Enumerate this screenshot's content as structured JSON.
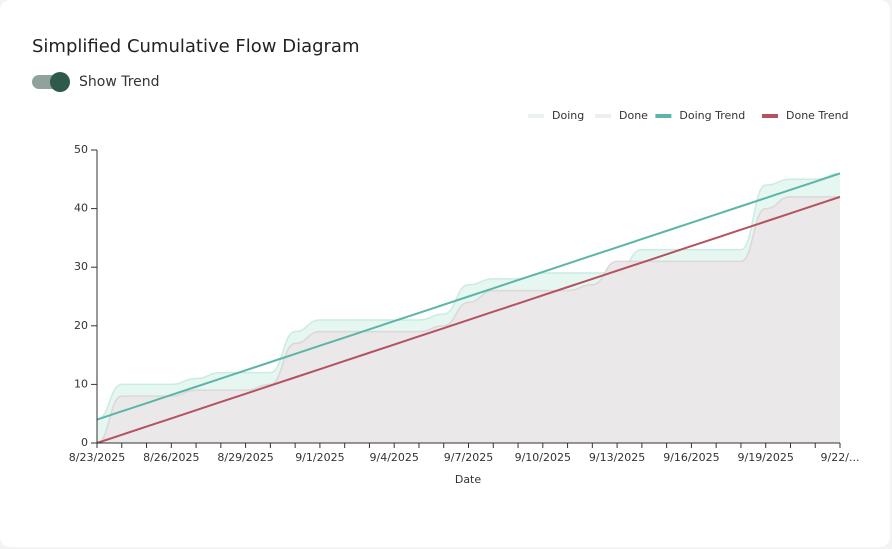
{
  "toggle_label": "Show Trend",
  "chart_data": {
    "type": "area",
    "title": "Simplified Cumulative Flow Diagram",
    "xlabel": "Date",
    "categories": [
      "8/23/2025",
      null,
      null,
      "8/26/2025",
      null,
      null,
      "8/29/2025",
      null,
      null,
      "9/1/2025",
      null,
      null,
      "9/4/2025",
      null,
      null,
      "9/7/2025",
      null,
      null,
      "9/10/2025",
      null,
      null,
      "9/13/2025",
      null,
      null,
      "9/16/2025",
      null,
      null,
      "9/19/2025",
      null,
      null,
      "9/22/..."
    ],
    "ylim": [
      0,
      50
    ],
    "yticks": [
      0,
      10,
      20,
      30,
      40,
      50
    ],
    "series": [
      {
        "name": "Doing",
        "kind": "area",
        "color": "#e3f6f1",
        "values": [
          4,
          10,
          10,
          10,
          11,
          12,
          12,
          12,
          19,
          21,
          21,
          21,
          21,
          21,
          22,
          27,
          28,
          28,
          29,
          29,
          29,
          29,
          33,
          33,
          33,
          33,
          33,
          44,
          45,
          45,
          46
        ]
      },
      {
        "name": "Done",
        "kind": "area",
        "color": "#eae6e7",
        "values": [
          0,
          8,
          8,
          8,
          9,
          9,
          9,
          10,
          17,
          19,
          19,
          19,
          19,
          19,
          20,
          24,
          26,
          26,
          26,
          26,
          27,
          31,
          31,
          31,
          31,
          31,
          31,
          40,
          42,
          42,
          42
        ]
      },
      {
        "name": "Doing Trend",
        "kind": "line",
        "color": "#5bb5a8",
        "values": [
          4,
          5.4,
          6.8,
          8.2,
          9.6,
          11,
          12.4,
          13.8,
          15.2,
          16.6,
          18,
          19.4,
          20.8,
          22.2,
          23.6,
          25,
          26.4,
          27.8,
          29.2,
          30.6,
          32,
          33.4,
          34.8,
          36.2,
          37.6,
          39,
          40.4,
          41.8,
          43.2,
          44.6,
          46
        ]
      },
      {
        "name": "Done Trend",
        "kind": "line",
        "color": "#b5525f",
        "values": [
          0,
          1.4,
          2.8,
          4.2,
          5.6,
          7,
          8.4,
          9.8,
          11.2,
          12.6,
          14,
          15.4,
          16.8,
          18.2,
          19.6,
          21,
          22.4,
          23.8,
          25.2,
          26.6,
          28,
          29.4,
          30.8,
          32.2,
          33.6,
          35,
          36.4,
          37.8,
          39.2,
          40.6,
          42
        ]
      }
    ]
  }
}
